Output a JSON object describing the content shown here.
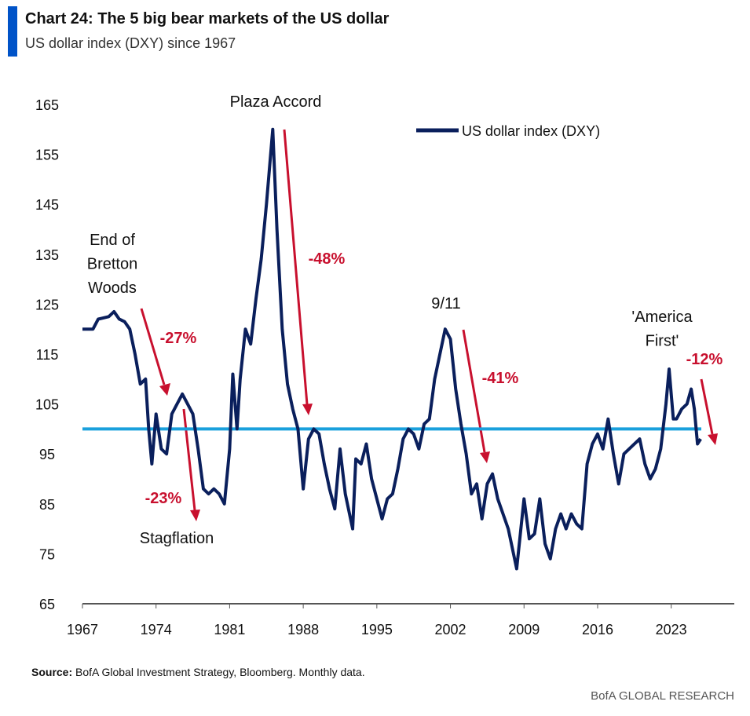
{
  "chart_data": {
    "type": "line",
    "title": "Chart 24: The 5 big bear markets of the US dollar",
    "subtitle": "US dollar index (DXY) since 1967",
    "series": [
      {
        "name": "US dollar index (DXY)",
        "color": "#0a1f5c",
        "x": [
          1967,
          1968,
          1968.5,
          1969.5,
          1970,
          1970.5,
          1971,
          1971.5,
          1972,
          1972.5,
          1973,
          1973.3,
          1973.6,
          1974,
          1974.5,
          1975,
          1975.5,
          1976,
          1976.5,
          1977,
          1977.5,
          1978,
          1978.5,
          1979,
          1979.5,
          1980,
          1980.5,
          1981,
          1981.3,
          1981.7,
          1982,
          1982.5,
          1983,
          1983.5,
          1984,
          1984.5,
          1985.1,
          1985.5,
          1986,
          1986.5,
          1987,
          1987.5,
          1988,
          1988.5,
          1989,
          1989.5,
          1990,
          1990.5,
          1991,
          1991.5,
          1992,
          1992.7,
          1993,
          1993.5,
          1994,
          1994.5,
          1995,
          1995.5,
          1996,
          1996.5,
          1997,
          1997.5,
          1998,
          1998.5,
          1999,
          1999.5,
          2000,
          2000.5,
          2001,
          2001.5,
          2002,
          2002.5,
          2003,
          2003.5,
          2004,
          2004.5,
          2005,
          2005.5,
          2006,
          2006.5,
          2007,
          2007.5,
          2008,
          2008.3,
          2009,
          2009.5,
          2010,
          2010.5,
          2011,
          2011.5,
          2012,
          2012.5,
          2013,
          2013.5,
          2014,
          2014.5,
          2015,
          2015.5,
          2016,
          2016.5,
          2017,
          2017.5,
          2018,
          2018.5,
          2019,
          2019.5,
          2020,
          2020.5,
          2021,
          2021.5,
          2022,
          2022.5,
          2022.8,
          2023.2,
          2023.5,
          2024,
          2024.5,
          2024.9,
          2025.2,
          2025.5,
          2025.8
        ],
        "values": [
          120,
          120,
          122,
          122.5,
          123.5,
          122,
          121.5,
          120,
          115,
          109,
          110,
          100,
          93,
          103,
          96,
          95,
          103,
          105,
          107,
          105,
          103,
          96,
          88,
          87,
          88,
          87,
          85,
          96,
          111,
          100,
          110,
          120,
          117,
          126,
          134,
          145,
          160,
          140,
          120,
          109,
          104,
          100,
          88,
          98,
          100,
          99,
          93,
          88,
          84,
          96,
          87,
          80,
          94,
          93,
          97,
          90,
          86,
          82,
          86,
          87,
          92,
          98,
          100,
          99,
          96,
          101,
          102,
          110,
          115,
          120,
          118,
          108,
          101,
          95,
          87,
          89,
          82,
          89,
          91,
          86,
          83,
          80,
          75,
          72,
          86,
          78,
          79,
          86,
          77,
          74,
          80,
          83,
          80,
          83,
          81,
          80,
          93,
          97,
          99,
          96,
          102,
          95,
          89,
          95,
          96,
          97,
          98,
          93,
          90,
          92,
          96,
          105,
          112,
          102,
          102,
          104,
          105,
          108,
          104,
          97,
          98
        ]
      }
    ],
    "reference_line": 100,
    "reference_color": "#1aa0dc",
    "xlim": [
      1967,
      2029
    ],
    "xticks": [
      1967,
      1974,
      1981,
      1988,
      1995,
      2002,
      2009,
      2016,
      2023
    ],
    "ylim": [
      65,
      165
    ],
    "yticks": [
      65,
      75,
      85,
      95,
      105,
      115,
      125,
      135,
      145,
      155,
      165
    ],
    "annotations": [
      [
        "End of",
        "Bretton",
        "Woods"
      ],
      [
        "Stagflation"
      ],
      [
        "Plaza Accord"
      ],
      [
        "9/11"
      ],
      [
        "'America",
        "First'"
      ],
      [
        "-27%"
      ],
      [
        "-23%"
      ],
      [
        "-48%"
      ],
      [
        "-41%"
      ],
      [
        "-12%"
      ]
    ],
    "source_label": "Source:",
    "source": "BofA Global Investment Strategy, Bloomberg. Monthly data.",
    "footer": "BofA GLOBAL RESEARCH"
  }
}
